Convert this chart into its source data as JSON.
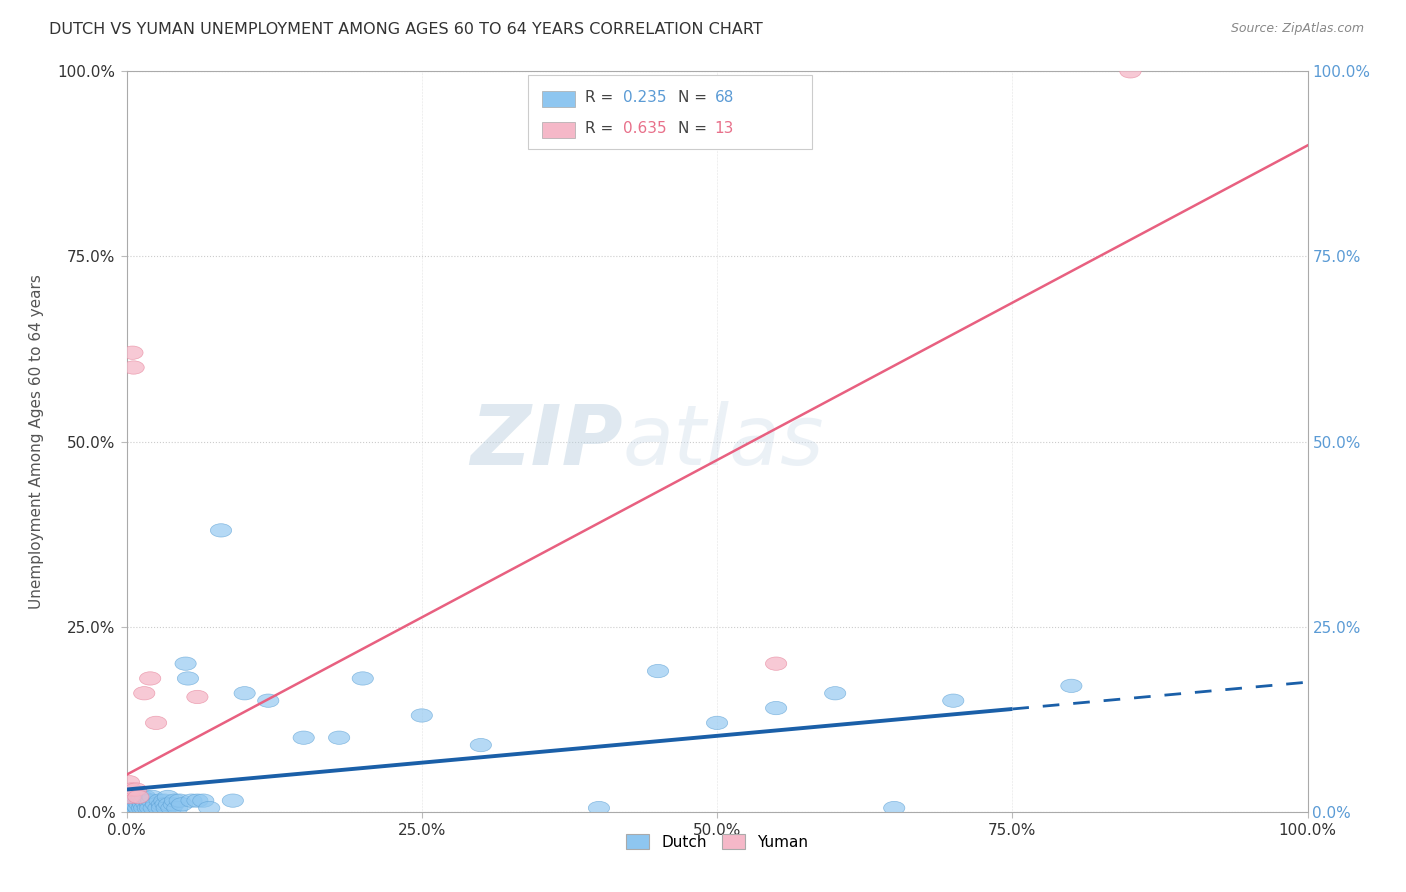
{
  "title": "DUTCH VS YUMAN UNEMPLOYMENT AMONG AGES 60 TO 64 YEARS CORRELATION CHART",
  "source": "Source: ZipAtlas.com",
  "ylabel": "Unemployment Among Ages 60 to 64 years",
  "xlabel": "",
  "xlim": [
    0,
    1
  ],
  "ylim": [
    0,
    1
  ],
  "xticks": [
    0.0,
    0.25,
    0.5,
    0.75,
    1.0
  ],
  "yticks": [
    0.0,
    0.25,
    0.5,
    0.75,
    1.0
  ],
  "xticklabels": [
    "0.0%",
    "25.0%",
    "50.0%",
    "75.0%",
    "100.0%"
  ],
  "yticklabels_left": [
    "0.0%",
    "25.0%",
    "50.0%",
    "75.0%",
    "100.0%"
  ],
  "yticklabels_right": [
    "0.0%",
    "25.0%",
    "50.0%",
    "75.0%",
    "100.0%"
  ],
  "watermark1": "ZIP",
  "watermark2": "atlas",
  "dutch_color": "#8EC6F0",
  "dutch_edge_color": "#5A9FD4",
  "yuman_color": "#F5B8C8",
  "yuman_edge_color": "#E88AA0",
  "dutch_line_color": "#1A5FA8",
  "yuman_line_color": "#E86080",
  "title_color": "#333333",
  "axis_label_color": "#555555",
  "right_tick_color": "#5B9BD5",
  "dutch_scatter_x": [
    0.002,
    0.003,
    0.004,
    0.005,
    0.005,
    0.006,
    0.007,
    0.007,
    0.008,
    0.008,
    0.009,
    0.01,
    0.01,
    0.011,
    0.012,
    0.013,
    0.013,
    0.014,
    0.015,
    0.015,
    0.016,
    0.017,
    0.018,
    0.019,
    0.02,
    0.02,
    0.021,
    0.022,
    0.023,
    0.025,
    0.027,
    0.028,
    0.03,
    0.03,
    0.032,
    0.033,
    0.034,
    0.035,
    0.036,
    0.038,
    0.04,
    0.041,
    0.043,
    0.045,
    0.047,
    0.05,
    0.052,
    0.055,
    0.06,
    0.065,
    0.07,
    0.08,
    0.09,
    0.1,
    0.12,
    0.15,
    0.18,
    0.2,
    0.25,
    0.3,
    0.4,
    0.45,
    0.5,
    0.55,
    0.6,
    0.65,
    0.7,
    0.8
  ],
  "dutch_scatter_y": [
    0.01,
    0.015,
    0.005,
    0.02,
    0.01,
    0.008,
    0.015,
    0.005,
    0.01,
    0.02,
    0.007,
    0.015,
    0.005,
    0.01,
    0.015,
    0.005,
    0.02,
    0.01,
    0.015,
    0.005,
    0.02,
    0.01,
    0.005,
    0.015,
    0.01,
    0.005,
    0.015,
    0.02,
    0.005,
    0.01,
    0.005,
    0.015,
    0.01,
    0.005,
    0.015,
    0.01,
    0.005,
    0.02,
    0.01,
    0.005,
    0.01,
    0.015,
    0.005,
    0.015,
    0.01,
    0.2,
    0.18,
    0.015,
    0.015,
    0.015,
    0.005,
    0.38,
    0.015,
    0.16,
    0.15,
    0.1,
    0.1,
    0.18,
    0.13,
    0.09,
    0.005,
    0.19,
    0.12,
    0.14,
    0.16,
    0.005,
    0.15,
    0.17
  ],
  "yuman_scatter_x": [
    0.002,
    0.003,
    0.004,
    0.005,
    0.006,
    0.008,
    0.01,
    0.015,
    0.02,
    0.025,
    0.06,
    0.55,
    0.85
  ],
  "yuman_scatter_y": [
    0.04,
    0.02,
    0.03,
    0.62,
    0.6,
    0.03,
    0.02,
    0.16,
    0.18,
    0.12,
    0.155,
    0.2,
    1.0
  ],
  "dutch_trend_start_x": 0.0,
  "dutch_trend_start_y": 0.03,
  "dutch_trend_solid_end_x": 0.75,
  "dutch_trend_end_x": 1.0,
  "dutch_trend_end_y": 0.175,
  "yuman_trend_start_x": 0.0,
  "yuman_trend_start_y": 0.05,
  "yuman_trend_end_x": 1.0,
  "yuman_trend_end_y": 0.9
}
